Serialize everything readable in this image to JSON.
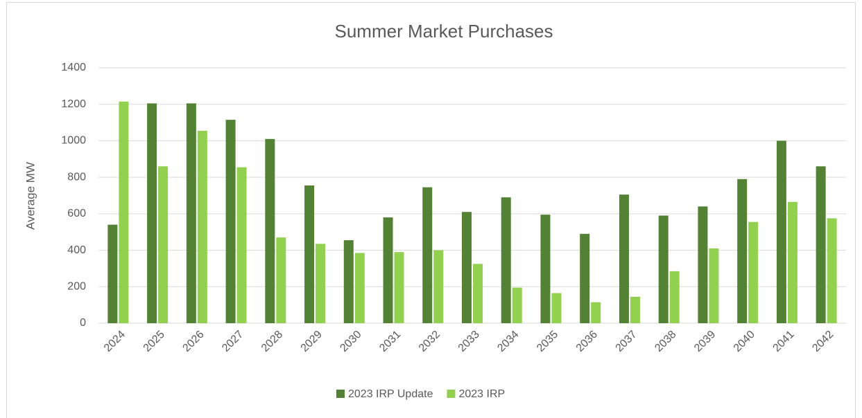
{
  "chart_data": {
    "type": "bar",
    "title": "Summer Market Purchases",
    "y_label": "Average MW",
    "categories": [
      "2024",
      "2025",
      "2026",
      "2027",
      "2028",
      "2029",
      "2030",
      "2031",
      "2032",
      "2033",
      "2034",
      "2035",
      "2036",
      "2037",
      "2038",
      "2039",
      "2040",
      "2041",
      "2042"
    ],
    "series": [
      {
        "name": "2023 IRP Update",
        "color": "#548235",
        "values": [
          540,
          1205,
          1205,
          1115,
          1010,
          755,
          455,
          580,
          745,
          610,
          690,
          595,
          490,
          705,
          590,
          640,
          790,
          1000,
          860
        ]
      },
      {
        "name": "2023 IRP",
        "color": "#92d050",
        "values": [
          1215,
          860,
          1055,
          855,
          470,
          435,
          385,
          390,
          400,
          325,
          195,
          165,
          115,
          145,
          285,
          410,
          555,
          665,
          575
        ]
      }
    ],
    "ylim": [
      0,
      1400
    ],
    "yticks": [
      0,
      200,
      400,
      600,
      800,
      1000,
      1200,
      1400
    ],
    "grid": true,
    "legend": "bottom"
  }
}
